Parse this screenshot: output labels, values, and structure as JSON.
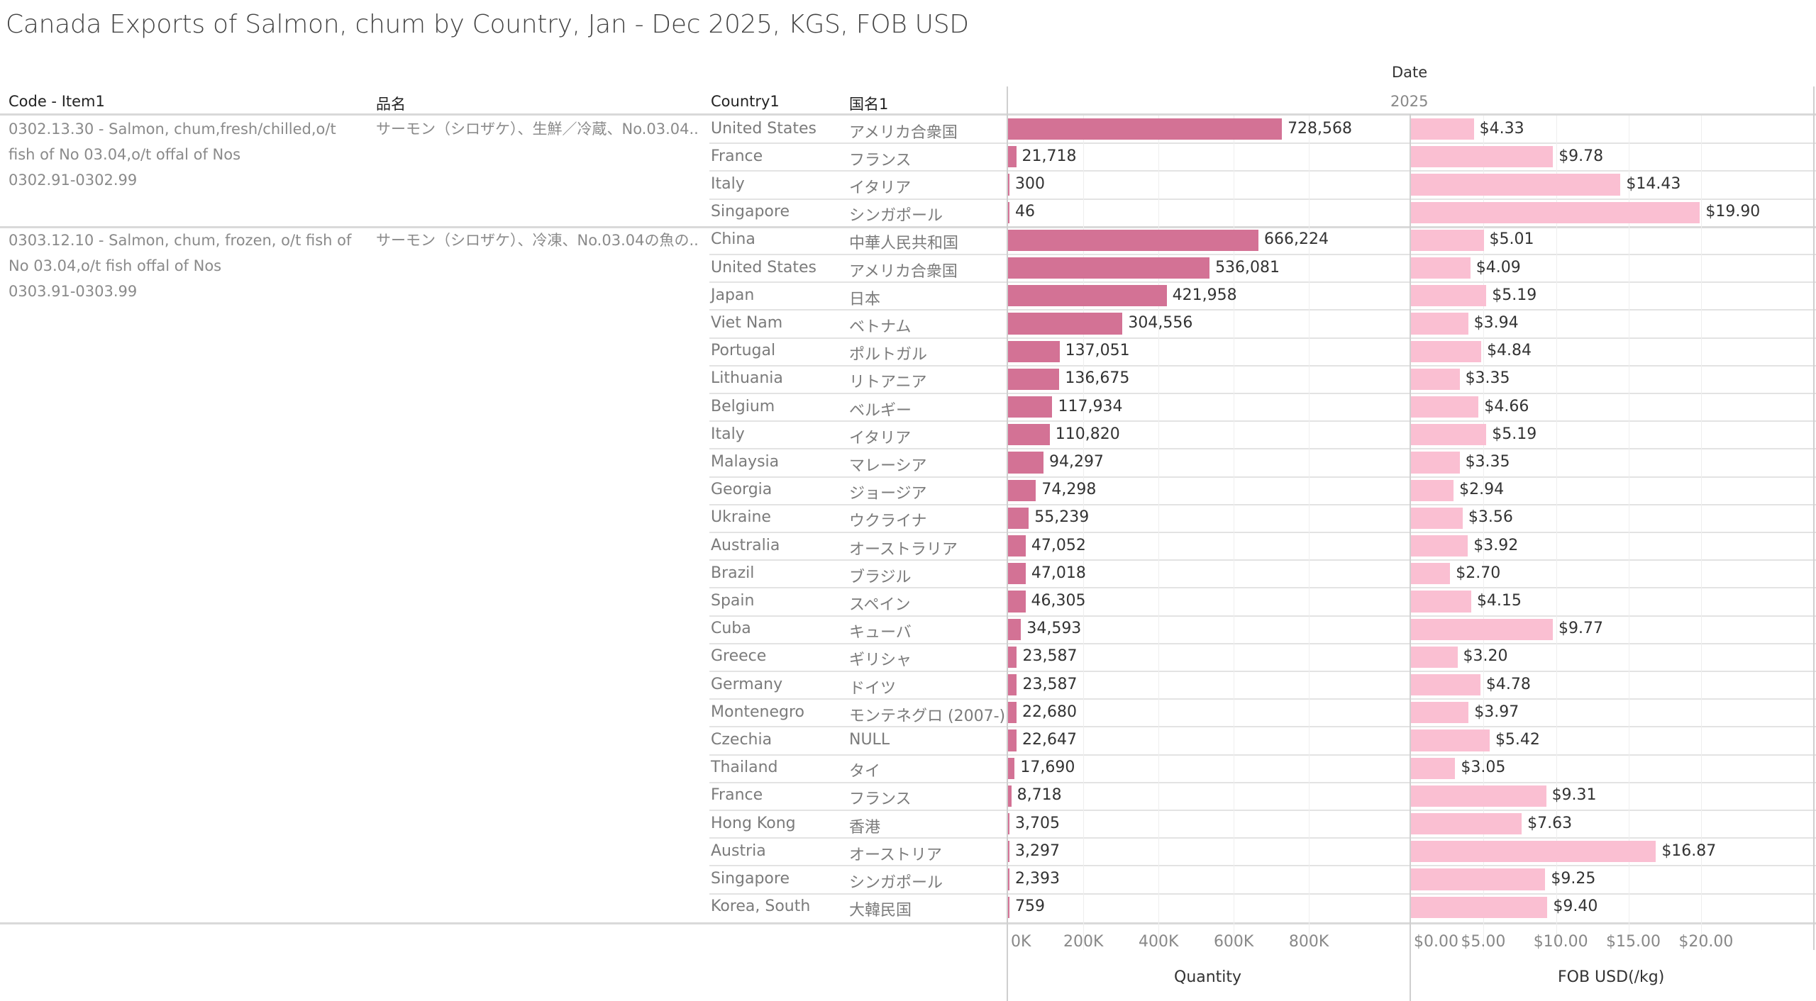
{
  "title": "Canada Exports of Salmon, chum by Country, Jan - Dec 2025, KGS, FOB USD",
  "headers": {
    "code_item": "Code - Item1",
    "hinmei": "品名",
    "country": "Country1",
    "kokumei": "国名1",
    "date": "Date",
    "year": "2025"
  },
  "colors": {
    "quantity_bar": "#d37295",
    "fob_bar": "#fabfd2"
  },
  "groups": [
    {
      "code_item_lines": [
        "0302.13.30 - Salmon, chum,fresh/chilled,o/t",
        "fish of No 03.04,o/t offal of Nos",
        "0302.91-0302.99"
      ],
      "hinmei": "サーモン（シロザケ）、生鮮／冷蔵、No.03.04..",
      "row_count": 4
    },
    {
      "code_item_lines": [
        "0303.12.10 - Salmon, chum, frozen, o/t fish of",
        "No 03.04,o/t fish offal of Nos",
        "0303.91-0303.99"
      ],
      "hinmei": "サーモン（シロザケ）、冷凍、No.03.04の魚の..",
      "row_count": 25
    }
  ],
  "chart_data": {
    "type": "bar",
    "orientation": "horizontal",
    "title": "Canada Exports of Salmon, chum by Country, Jan - Dec 2025, KGS, FOB USD",
    "column_header": "Date",
    "column_value": "2025",
    "rows": [
      {
        "group": 0,
        "country": "United States",
        "kokumei": "アメリカ合衆国",
        "quantity": 728568,
        "quantity_label": "728,568",
        "fob": 4.33,
        "fob_label": "$4.33"
      },
      {
        "group": 0,
        "country": "France",
        "kokumei": "フランス",
        "quantity": 21718,
        "quantity_label": "21,718",
        "fob": 9.78,
        "fob_label": "$9.78"
      },
      {
        "group": 0,
        "country": "Italy",
        "kokumei": "イタリア",
        "quantity": 300,
        "quantity_label": "300",
        "fob": 14.43,
        "fob_label": "$14.43"
      },
      {
        "group": 0,
        "country": "Singapore",
        "kokumei": "シンガポール",
        "quantity": 46,
        "quantity_label": "46",
        "fob": 19.9,
        "fob_label": "$19.90"
      },
      {
        "group": 1,
        "country": "China",
        "kokumei": "中華人民共和国",
        "quantity": 666224,
        "quantity_label": "666,224",
        "fob": 5.01,
        "fob_label": "$5.01"
      },
      {
        "group": 1,
        "country": "United States",
        "kokumei": "アメリカ合衆国",
        "quantity": 536081,
        "quantity_label": "536,081",
        "fob": 4.09,
        "fob_label": "$4.09"
      },
      {
        "group": 1,
        "country": "Japan",
        "kokumei": "日本",
        "quantity": 421958,
        "quantity_label": "421,958",
        "fob": 5.19,
        "fob_label": "$5.19"
      },
      {
        "group": 1,
        "country": "Viet Nam",
        "kokumei": "ベトナム",
        "quantity": 304556,
        "quantity_label": "304,556",
        "fob": 3.94,
        "fob_label": "$3.94"
      },
      {
        "group": 1,
        "country": "Portugal",
        "kokumei": "ポルトガル",
        "quantity": 137051,
        "quantity_label": "137,051",
        "fob": 4.84,
        "fob_label": "$4.84"
      },
      {
        "group": 1,
        "country": "Lithuania",
        "kokumei": "リトアニア",
        "quantity": 136675,
        "quantity_label": "136,675",
        "fob": 3.35,
        "fob_label": "$3.35"
      },
      {
        "group": 1,
        "country": "Belgium",
        "kokumei": "ベルギー",
        "quantity": 117934,
        "quantity_label": "117,934",
        "fob": 4.66,
        "fob_label": "$4.66"
      },
      {
        "group": 1,
        "country": "Italy",
        "kokumei": "イタリア",
        "quantity": 110820,
        "quantity_label": "110,820",
        "fob": 5.19,
        "fob_label": "$5.19"
      },
      {
        "group": 1,
        "country": "Malaysia",
        "kokumei": "マレーシア",
        "quantity": 94297,
        "quantity_label": "94,297",
        "fob": 3.35,
        "fob_label": "$3.35"
      },
      {
        "group": 1,
        "country": "Georgia",
        "kokumei": "ジョージア",
        "quantity": 74298,
        "quantity_label": "74,298",
        "fob": 2.94,
        "fob_label": "$2.94"
      },
      {
        "group": 1,
        "country": "Ukraine",
        "kokumei": "ウクライナ",
        "quantity": 55239,
        "quantity_label": "55,239",
        "fob": 3.56,
        "fob_label": "$3.56"
      },
      {
        "group": 1,
        "country": "Australia",
        "kokumei": "オーストラリア",
        "quantity": 47052,
        "quantity_label": "47,052",
        "fob": 3.92,
        "fob_label": "$3.92"
      },
      {
        "group": 1,
        "country": "Brazil",
        "kokumei": "ブラジル",
        "quantity": 47018,
        "quantity_label": "47,018",
        "fob": 2.7,
        "fob_label": "$2.70"
      },
      {
        "group": 1,
        "country": "Spain",
        "kokumei": "スペイン",
        "quantity": 46305,
        "quantity_label": "46,305",
        "fob": 4.15,
        "fob_label": "$4.15"
      },
      {
        "group": 1,
        "country": "Cuba",
        "kokumei": "キューバ",
        "quantity": 34593,
        "quantity_label": "34,593",
        "fob": 9.77,
        "fob_label": "$9.77"
      },
      {
        "group": 1,
        "country": "Greece",
        "kokumei": "ギリシャ",
        "quantity": 23587,
        "quantity_label": "23,587",
        "fob": 3.2,
        "fob_label": "$3.20"
      },
      {
        "group": 1,
        "country": "Germany",
        "kokumei": "ドイツ",
        "quantity": 23587,
        "quantity_label": "23,587",
        "fob": 4.78,
        "fob_label": "$4.78"
      },
      {
        "group": 1,
        "country": "Montenegro",
        "kokumei": "モンテネグロ (2007-)",
        "quantity": 22680,
        "quantity_label": "22,680",
        "fob": 3.97,
        "fob_label": "$3.97"
      },
      {
        "group": 1,
        "country": "Czechia",
        "kokumei": "NULL",
        "quantity": 22647,
        "quantity_label": "22,647",
        "fob": 5.42,
        "fob_label": "$5.42"
      },
      {
        "group": 1,
        "country": "Thailand",
        "kokumei": "タイ",
        "quantity": 17690,
        "quantity_label": "17,690",
        "fob": 3.05,
        "fob_label": "$3.05"
      },
      {
        "group": 1,
        "country": "France",
        "kokumei": "フランス",
        "quantity": 8718,
        "quantity_label": "8,718",
        "fob": 9.31,
        "fob_label": "$9.31"
      },
      {
        "group": 1,
        "country": "Hong Kong",
        "kokumei": "香港",
        "quantity": 3705,
        "quantity_label": "3,705",
        "fob": 7.63,
        "fob_label": "$7.63"
      },
      {
        "group": 1,
        "country": "Austria",
        "kokumei": "オーストリア",
        "quantity": 3297,
        "quantity_label": "3,297",
        "fob": 16.87,
        "fob_label": "$16.87"
      },
      {
        "group": 1,
        "country": "Singapore",
        "kokumei": "シンガポール",
        "quantity": 2393,
        "quantity_label": "2,393",
        "fob": 9.25,
        "fob_label": "$9.25"
      },
      {
        "group": 1,
        "country": "Korea, South",
        "kokumei": "大韓民国",
        "quantity": 759,
        "quantity_label": "759",
        "fob": 9.4,
        "fob_label": "$9.40"
      }
    ],
    "axes": [
      {
        "title": "Quantity",
        "range": [
          0,
          1070000
        ],
        "ticks": [
          0,
          200000,
          400000,
          600000,
          800000
        ],
        "tick_labels": [
          "0K",
          "200K",
          "400K",
          "600K",
          "800K"
        ],
        "grid": true
      },
      {
        "title": "FOB USD(/kg)",
        "range": [
          0,
          27.7
        ],
        "ticks": [
          0,
          5,
          10,
          15,
          20
        ],
        "tick_labels": [
          "$0.00",
          "$5.00",
          "$10.00",
          "$15.00",
          "$20.00"
        ],
        "grid": true
      }
    ]
  }
}
